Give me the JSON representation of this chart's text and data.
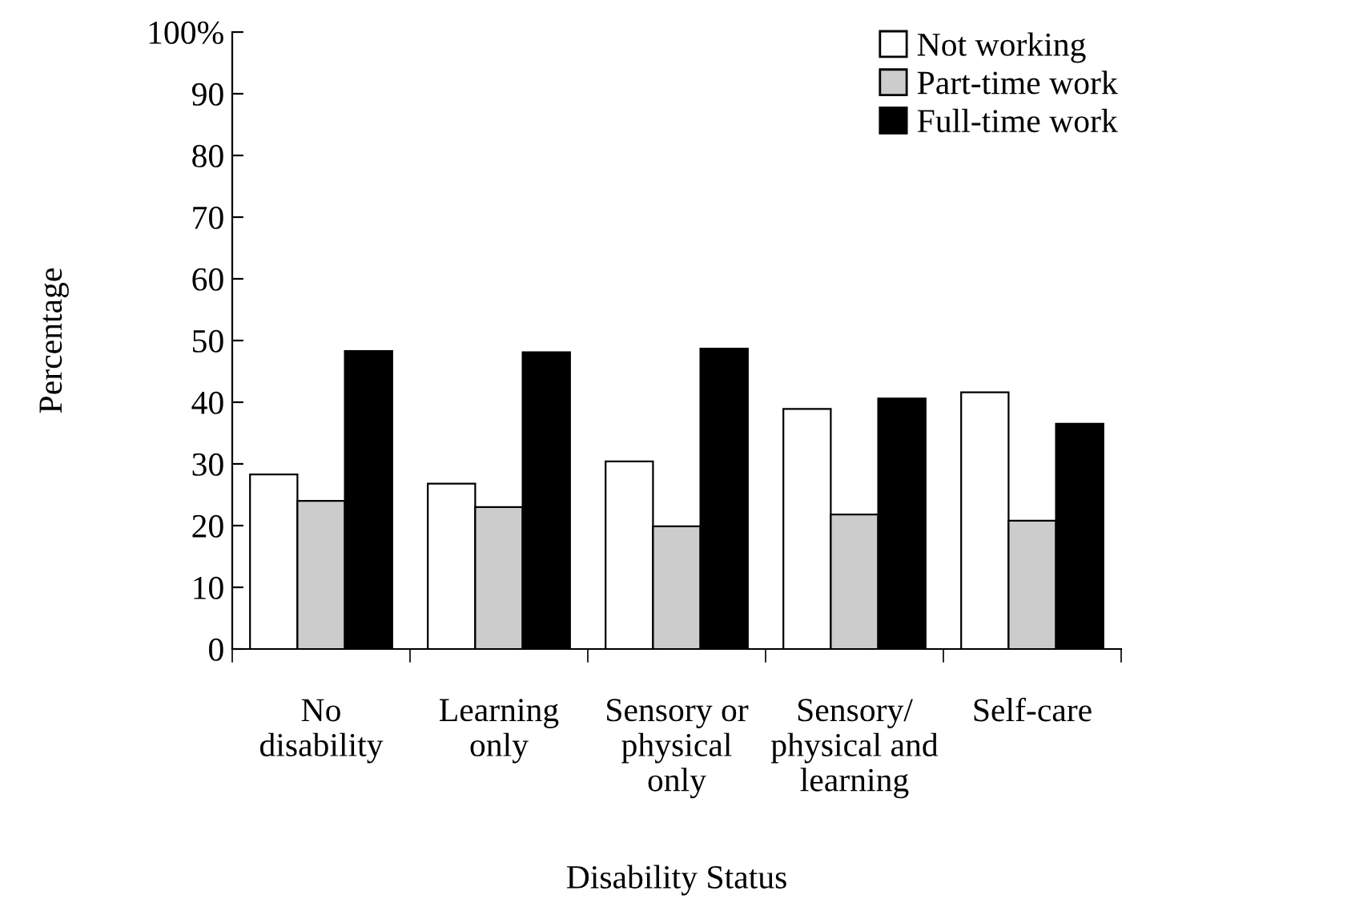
{
  "chart_data": {
    "type": "bar",
    "xlabel": "Disability Status",
    "ylabel": "Percentage",
    "categories": [
      "No\ndisability",
      "Learning\nonly",
      "Sensory or\nphysical\nonly",
      "Sensory/\nphysical and\nlearning",
      "Self-care"
    ],
    "series": [
      {
        "name": "Not working",
        "color": "#ffffff",
        "values": [
          28.3,
          26.8,
          30.4,
          38.9,
          41.6
        ]
      },
      {
        "name": "Part-time work",
        "color": "#cccccc",
        "values": [
          24.0,
          23.0,
          19.9,
          21.8,
          20.8
        ]
      },
      {
        "name": "Full-time work",
        "color": "#000000",
        "values": [
          48.3,
          48.1,
          48.7,
          40.6,
          36.5
        ]
      }
    ],
    "ylim": [
      0,
      100
    ],
    "yticks": [
      0,
      10,
      20,
      30,
      40,
      50,
      60,
      70,
      80,
      90,
      {
        "value": 100,
        "label": "100%"
      }
    ],
    "grid": false,
    "legend": "top right"
  }
}
